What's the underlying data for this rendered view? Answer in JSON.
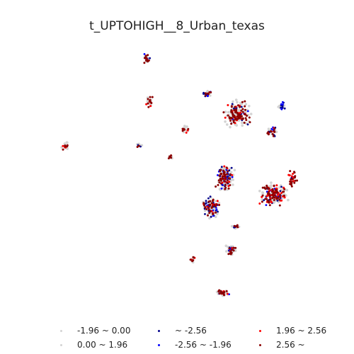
{
  "title": "t_UPTOHIGH__8_Urban_texas",
  "legend": {
    "items": [
      {
        "label": "-1.96 ~ 0.00",
        "color": "#d3d3d3"
      },
      {
        "label": "0.00 ~ 1.96",
        "color": "#d3d3d3"
      },
      {
        "label": "~ -2.56",
        "color": "#00008b"
      },
      {
        "label": "-2.56 ~ -1.96",
        "color": "#0000ff"
      },
      {
        "label": "1.96 ~ 2.56",
        "color": "#ff0000"
      },
      {
        "label": "2.56 ~",
        "color": "#8b0000"
      }
    ]
  },
  "colors": {
    "neutral": "#d3d3d3",
    "cold_strong": "#00008b",
    "cold": "#0000ff",
    "hot": "#ff0000",
    "hot_strong": "#8b0000"
  }
}
